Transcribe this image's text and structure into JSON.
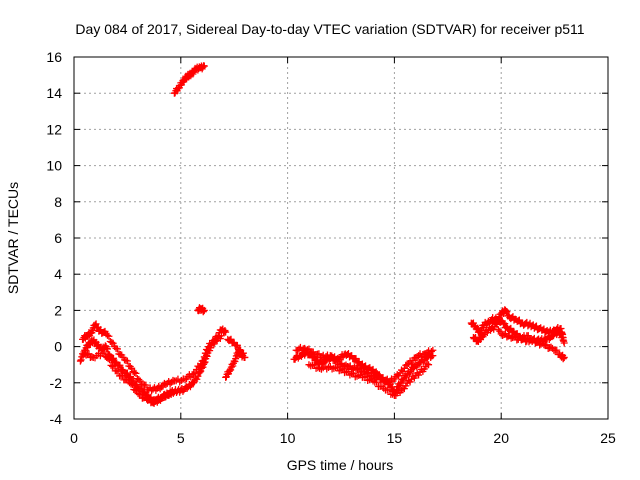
{
  "chart_data": {
    "type": "scatter",
    "title": "Day 084 of 2017, Sidereal Day-to-day VTEC variation (SDTVAR) for receiver p511",
    "xlabel": "GPS time / hours",
    "ylabel": "SDTVAR / TECUs",
    "xlim": [
      0,
      25
    ],
    "ylim": [
      -4,
      16
    ],
    "xticks": [
      0,
      5,
      10,
      15,
      20,
      25
    ],
    "yticks": [
      -4,
      -2,
      0,
      2,
      4,
      6,
      8,
      10,
      12,
      14,
      16
    ],
    "grid": true,
    "marker": "plus",
    "color": "#ff0000",
    "series": [
      {
        "name": "SDTVAR",
        "segments": [
          [
            [
              0.3,
              -0.8
            ],
            [
              0.5,
              -0.2
            ],
            [
              0.7,
              0.2
            ],
            [
              0.9,
              0.3
            ],
            [
              1.1,
              0.1
            ],
            [
              1.3,
              -0.2
            ],
            [
              1.5,
              0.0
            ],
            [
              1.7,
              -0.6
            ],
            [
              2.0,
              -0.9
            ],
            [
              2.3,
              -1.3
            ],
            [
              2.6,
              -1.7
            ],
            [
              2.9,
              -2.1
            ],
            [
              3.2,
              -2.5
            ],
            [
              3.5,
              -2.8
            ],
            [
              3.8,
              -3.0
            ],
            [
              4.1,
              -2.8
            ],
            [
              4.4,
              -2.6
            ],
            [
              4.7,
              -2.5
            ],
            [
              5.0,
              -2.4
            ],
            [
              5.3,
              -2.3
            ],
            [
              5.6,
              -2.0
            ],
            [
              5.9,
              -1.4
            ],
            [
              6.1,
              -0.9
            ],
            [
              6.3,
              -0.2
            ],
            [
              6.6,
              0.3
            ],
            [
              6.9,
              0.6
            ]
          ],
          [
            [
              0.4,
              0.4
            ],
            [
              0.6,
              0.6
            ],
            [
              0.8,
              0.8
            ],
            [
              1.0,
              1.2
            ],
            [
              1.2,
              0.9
            ],
            [
              1.5,
              0.7
            ],
            [
              1.9,
              0.0
            ],
            [
              2.3,
              -0.6
            ],
            [
              2.7,
              -1.2
            ],
            [
              3.1,
              -1.9
            ],
            [
              3.5,
              -2.4
            ],
            [
              3.9,
              -2.3
            ],
            [
              4.3,
              -2.1
            ],
            [
              4.7,
              -1.9
            ],
            [
              5.2,
              -1.8
            ],
            [
              5.6,
              -1.5
            ],
            [
              6.0,
              -0.8
            ],
            [
              6.3,
              0.0
            ],
            [
              6.6,
              0.4
            ],
            [
              6.9,
              0.9
            ],
            [
              7.1,
              0.8
            ]
          ],
          [
            [
              0.5,
              -0.4
            ],
            [
              0.9,
              -0.6
            ],
            [
              1.4,
              -0.3
            ],
            [
              1.8,
              -1.1
            ],
            [
              2.2,
              -1.6
            ],
            [
              2.6,
              -2.0
            ],
            [
              3.0,
              -2.6
            ],
            [
              3.4,
              -2.9
            ],
            [
              3.7,
              -3.1
            ],
            [
              4.0,
              -2.9
            ],
            [
              4.3,
              -2.7
            ],
            [
              4.6,
              -2.5
            ]
          ],
          [
            [
              4.7,
              14.0
            ],
            [
              4.9,
              14.3
            ],
            [
              5.1,
              14.7
            ],
            [
              5.3,
              14.9
            ],
            [
              5.5,
              15.1
            ],
            [
              5.7,
              15.3
            ],
            [
              5.9,
              15.4
            ],
            [
              6.1,
              15.5
            ]
          ],
          [
            [
              5.8,
              2.0
            ],
            [
              5.95,
              2.1
            ],
            [
              6.1,
              2.0
            ]
          ],
          [
            [
              7.1,
              -1.7
            ],
            [
              7.3,
              -1.3
            ],
            [
              7.5,
              -0.8
            ],
            [
              7.7,
              -0.3
            ],
            [
              7.9,
              -0.5
            ]
          ],
          [
            [
              7.2,
              0.4
            ],
            [
              7.5,
              0.2
            ],
            [
              7.8,
              -0.2
            ],
            [
              8.0,
              -0.6
            ]
          ],
          [
            [
              10.3,
              -0.7
            ],
            [
              10.6,
              -0.5
            ],
            [
              10.9,
              -0.3
            ],
            [
              11.2,
              -0.6
            ],
            [
              11.5,
              -0.9
            ],
            [
              11.8,
              -0.8
            ],
            [
              12.1,
              -0.6
            ],
            [
              12.4,
              -0.7
            ],
            [
              12.7,
              -0.4
            ],
            [
              13.0,
              -0.5
            ],
            [
              13.3,
              -0.9
            ],
            [
              13.6,
              -1.1
            ],
            [
              13.9,
              -1.3
            ],
            [
              14.2,
              -1.5
            ],
            [
              14.5,
              -1.9
            ],
            [
              14.8,
              -2.1
            ],
            [
              15.0,
              -2.5
            ],
            [
              15.3,
              -2.0
            ],
            [
              15.6,
              -1.5
            ],
            [
              15.9,
              -1.2
            ],
            [
              16.2,
              -0.9
            ],
            [
              16.5,
              -0.6
            ],
            [
              16.8,
              -0.5
            ]
          ],
          [
            [
              10.4,
              -0.2
            ],
            [
              10.8,
              -0.1
            ],
            [
              11.2,
              -0.3
            ],
            [
              11.6,
              -0.6
            ],
            [
              12.0,
              -0.5
            ],
            [
              12.4,
              -1.0
            ],
            [
              12.8,
              -1.1
            ],
            [
              13.2,
              -1.2
            ],
            [
              13.6,
              -1.4
            ],
            [
              14.0,
              -1.6
            ],
            [
              14.4,
              -1.8
            ],
            [
              14.8,
              -1.9
            ],
            [
              15.2,
              -1.6
            ],
            [
              15.6,
              -1.0
            ],
            [
              16.0,
              -0.6
            ],
            [
              16.4,
              -0.4
            ],
            [
              16.8,
              -0.2
            ]
          ],
          [
            [
              11.0,
              -1.0
            ],
            [
              11.5,
              -1.2
            ],
            [
              12.0,
              -1.1
            ],
            [
              12.5,
              -1.3
            ],
            [
              13.0,
              -1.5
            ],
            [
              13.5,
              -1.7
            ],
            [
              14.0,
              -1.9
            ],
            [
              14.5,
              -2.3
            ],
            [
              15.0,
              -2.7
            ],
            [
              15.4,
              -2.3
            ],
            [
              15.8,
              -1.8
            ],
            [
              16.2,
              -1.4
            ],
            [
              16.6,
              -1.0
            ]
          ],
          [
            [
              18.6,
              1.3
            ],
            [
              18.8,
              1.1
            ],
            [
              19.0,
              0.8
            ],
            [
              19.2,
              1.2
            ],
            [
              19.5,
              1.4
            ],
            [
              19.8,
              1.5
            ],
            [
              20.1,
              1.3
            ],
            [
              20.3,
              1.0
            ],
            [
              20.6,
              0.8
            ],
            [
              20.9,
              0.5
            ],
            [
              21.2,
              0.3
            ],
            [
              21.5,
              0.4
            ],
            [
              21.8,
              0.3
            ],
            [
              22.1,
              0.4
            ],
            [
              22.4,
              0.6
            ],
            [
              22.7,
              0.8
            ],
            [
              22.9,
              0.5
            ]
          ],
          [
            [
              18.7,
              0.5
            ],
            [
              18.9,
              0.3
            ],
            [
              19.1,
              0.6
            ],
            [
              19.4,
              0.9
            ],
            [
              19.7,
              1.1
            ],
            [
              20.0,
              1.8
            ],
            [
              20.2,
              2.0
            ],
            [
              20.4,
              1.6
            ],
            [
              20.7,
              1.5
            ],
            [
              21.0,
              1.3
            ],
            [
              21.3,
              1.2
            ],
            [
              21.6,
              1.1
            ],
            [
              21.9,
              0.9
            ],
            [
              22.2,
              0.8
            ],
            [
              22.5,
              0.9
            ],
            [
              22.8,
              1.0
            ],
            [
              22.95,
              0.2
            ]
          ],
          [
            [
              19.6,
              1.6
            ],
            [
              20.0,
              0.7
            ],
            [
              20.4,
              0.6
            ],
            [
              20.8,
              0.4
            ],
            [
              21.2,
              0.6
            ],
            [
              21.6,
              0.2
            ],
            [
              22.0,
              0.1
            ],
            [
              22.4,
              -0.1
            ],
            [
              22.8,
              -0.5
            ],
            [
              22.95,
              -0.6
            ]
          ]
        ]
      }
    ]
  }
}
